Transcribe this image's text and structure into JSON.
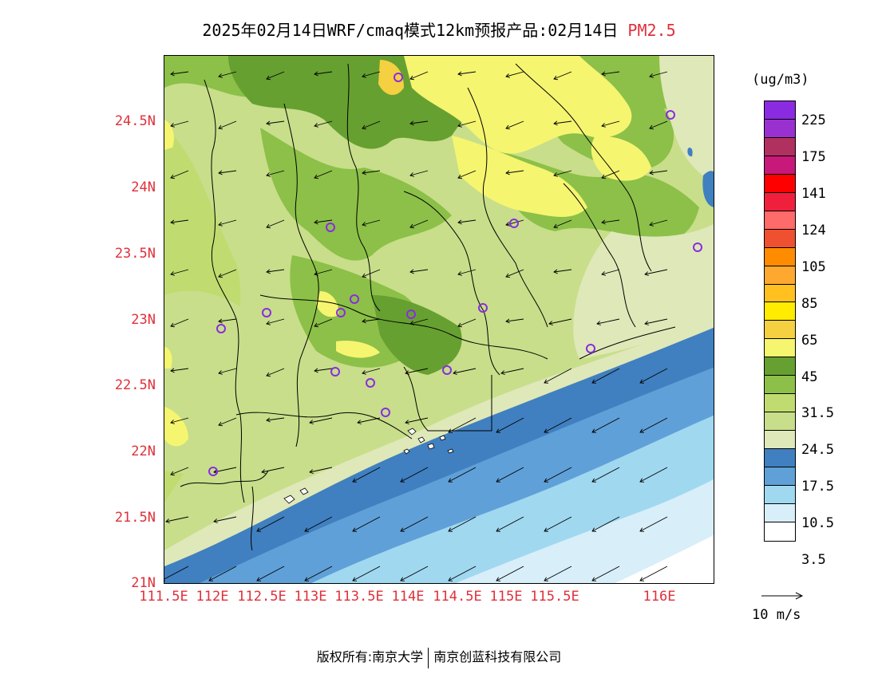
{
  "title": {
    "main": "2025年02月14日WRF/cmaq模式12km预报产品:02月14日",
    "species": "PM2.5"
  },
  "map": {
    "lat_labels": [
      "24.5N",
      "24N",
      "23.5N",
      "23N",
      "22.5N",
      "22N",
      "21.5N",
      "21N"
    ],
    "lon_labels": [
      "111.5E",
      "112E",
      "112.5E",
      "113E",
      "113.5E",
      "114E",
      "114.5E",
      "115E",
      "115.5E",
      "116E"
    ],
    "colors": {
      "frame": "#000000",
      "boundary": "#000000",
      "station_marker": "#8a2be2",
      "tick_labels": "#e0303a"
    }
  },
  "colorbar": {
    "unit": "(ug/m3)",
    "colors": [
      "#8a2be2",
      "#9b30d0",
      "#b03060",
      "#c8187a",
      "#ff0000",
      "#f0203c",
      "#ff6a6a",
      "#ef5030",
      "#ff8c00",
      "#ffa830",
      "#ffc020",
      "#ffec00",
      "#f5d040",
      "#f5f570",
      "#66a030",
      "#8cc048",
      "#c0dc70",
      "#c8de8a",
      "#dfe8b8",
      "#4080c0",
      "#60a0d8",
      "#a0d8f0",
      "#d8eef8",
      "#ffffff"
    ],
    "labels": [
      "225",
      "175",
      "141",
      "124",
      "105",
      "85",
      "65",
      "45",
      "31.5",
      "24.5",
      "17.5",
      "10.5",
      "3.5"
    ]
  },
  "wind_reference": {
    "label": "10 m/s"
  },
  "footer": {
    "copyright": "版权所有:南京大学",
    "company": "南京创蓝科技有限公司"
  }
}
